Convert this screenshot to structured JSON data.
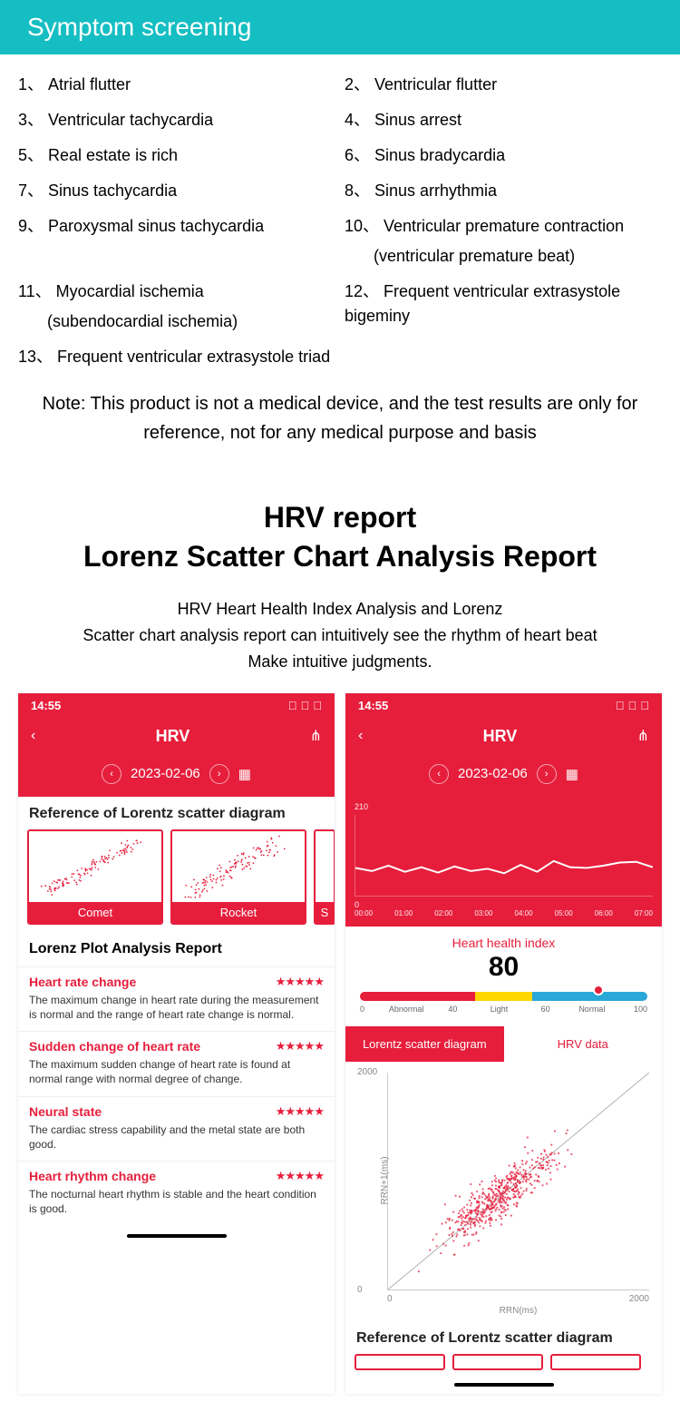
{
  "banner": {
    "title": "Symptom screening"
  },
  "symptoms": {
    "col1": [
      {
        "num": "1、",
        "text": "Atrial flutter"
      },
      {
        "num": "3、",
        "text": "Ventricular tachycardia"
      },
      {
        "num": "5、",
        "text": "Real estate is rich"
      },
      {
        "num": "7、",
        "text": "Sinus tachycardia"
      },
      {
        "num": "9、",
        "text": "Paroxysmal sinus tachycardia"
      },
      {
        "num": "11、",
        "text": "Myocardial ischemia",
        "sub": "(subendocardial ischemia)"
      },
      {
        "num": "13、",
        "text": "Frequent ventricular extrasystole triad"
      }
    ],
    "col2": [
      {
        "num": "2、",
        "text": "Ventricular flutter"
      },
      {
        "num": "4、",
        "text": "Sinus arrest"
      },
      {
        "num": "6、",
        "text": "Sinus bradycardia"
      },
      {
        "num": "8、",
        "text": "Sinus arrhythmia"
      },
      {
        "num": "10、",
        "text": "Ventricular premature contraction",
        "sub": "(ventricular premature beat)"
      },
      {
        "num": "12、",
        "text": "Frequent ventricular extrasystole bigeminy"
      }
    ]
  },
  "note": "Note: This product is not a medical device, and the test results are only for reference, not for any medical purpose and basis",
  "hrv": {
    "title_line1": "HRV report",
    "title_line2": "Lorenz Scatter Chart Analysis Report",
    "sub1": "HRV Heart Health Index Analysis and Lorenz",
    "sub2": "Scatter chart analysis report can intuitively see the rhythm of heart beat",
    "sub3": "Make intuitive judgments."
  },
  "phone": {
    "time": "14:55",
    "nav_title": "HRV",
    "date": "2023-02-06"
  },
  "left": {
    "ref_header": "Reference of Lorentz scatter diagram",
    "ref_items": [
      "Comet",
      "Rocket",
      "S"
    ],
    "analysis_header": "Lorenz Plot Analysis Report",
    "metrics": [
      {
        "name": "Heart rate change",
        "stars": "★★★★★",
        "desc": "The maximum change in heart rate during the measurement is normal and the range of heart rate change is normal."
      },
      {
        "name": "Sudden change of heart rate",
        "stars": "★★★★★",
        "desc": "The maximum sudden change of heart rate is found at normal range with normal degree of change."
      },
      {
        "name": "Neural state",
        "stars": "★★★★★",
        "desc": "The cardiac stress capability and the metal state are both good."
      },
      {
        "name": "Heart rhythm change",
        "stars": "★★★★★",
        "desc": "The nocturnal heart rhythm is stable and the heart condition is good."
      }
    ]
  },
  "right": {
    "line_chart": {
      "y_max": "210",
      "y_min": "0",
      "x_labels": [
        "00:00",
        "01:00",
        "02:00",
        "03:00",
        "04:00",
        "05:00",
        "06:00",
        "07:00"
      ],
      "values": [
        72,
        64,
        78,
        62,
        74,
        60,
        76,
        64,
        70,
        58,
        80,
        62,
        90,
        74,
        72,
        78,
        86,
        88,
        74
      ],
      "ylim": [
        0,
        210
      ],
      "line_color": "#ffffff",
      "bg_color": "#e61e3c"
    },
    "hh": {
      "label": "Heart health index",
      "value": "80",
      "gauge": {
        "segments": [
          {
            "color": "#e61e3c",
            "pct": 40
          },
          {
            "color": "#ffd600",
            "pct": 20
          },
          {
            "color": "#2aa8d8",
            "pct": 40
          }
        ],
        "ticks": [
          "0",
          "Abnormal",
          "40",
          "Light",
          "60",
          "Normal",
          "100"
        ],
        "marker_pct": 80
      }
    },
    "tabs": {
      "active": "Lorentz scatter diagram",
      "inactive": "HRV data"
    },
    "scatter": {
      "ymax": "2000",
      "ymin": "0",
      "xmax": "2000",
      "xmin": "0",
      "ylabel": "RRN+1(ms)",
      "xlabel": "RRN(ms)",
      "point_color": "#e61e3c",
      "diag_color": "#b0b0b0",
      "cluster_center": [
        850,
        850
      ],
      "cluster_spread": 280,
      "n_points": 550
    },
    "ref_header": "Reference of Lorentz scatter diagram"
  },
  "colors": {
    "teal": "#15bec2",
    "red": "#e61e3c",
    "yellow": "#ffd600",
    "blue": "#2aa8d8"
  }
}
